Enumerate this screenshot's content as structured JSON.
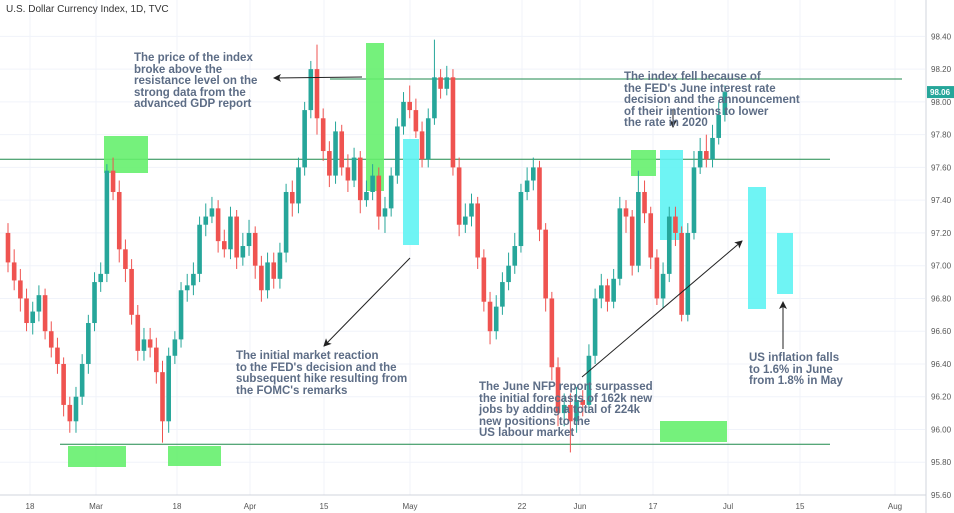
{
  "title": "U.S. Dollar Currency Index, 1D, TVC",
  "chart_data": {
    "type": "candlestick",
    "ylim": [
      95.6,
      98.5
    ],
    "y_ticks": [
      "98.40",
      "98.20",
      "98.00",
      "97.80",
      "97.60",
      "97.40",
      "97.20",
      "97.00",
      "96.80",
      "96.60",
      "96.40",
      "96.20",
      "96.00",
      "95.80",
      "95.60"
    ],
    "x_ticks": [
      "18",
      "Mar",
      "18",
      "Apr",
      "15",
      "May",
      "22",
      "Jun",
      "17",
      "Jul",
      "15",
      "Aug"
    ],
    "last_price": "98.06",
    "horizontal_levels": [
      98.14,
      97.65,
      95.91
    ],
    "candles": [
      [
        97.2,
        97.02,
        97.26,
        96.96
      ],
      [
        97.02,
        96.91,
        97.1,
        96.85
      ],
      [
        96.91,
        96.8,
        96.98,
        96.72
      ],
      [
        96.8,
        96.65,
        96.86,
        96.6
      ],
      [
        96.65,
        96.72,
        96.78,
        96.58
      ],
      [
        96.72,
        96.82,
        96.88,
        96.66
      ],
      [
        96.82,
        96.6,
        96.86,
        96.55
      ],
      [
        96.6,
        96.5,
        96.66,
        96.44
      ],
      [
        96.5,
        96.4,
        96.56,
        96.34
      ],
      [
        96.4,
        96.15,
        96.44,
        96.08
      ],
      [
        96.15,
        96.05,
        96.2,
        95.98
      ],
      [
        96.05,
        96.2,
        96.26,
        95.98
      ],
      [
        96.2,
        96.4,
        96.46,
        96.15
      ],
      [
        96.4,
        96.65,
        96.7,
        96.34
      ],
      [
        96.65,
        96.9,
        96.96,
        96.6
      ],
      [
        96.9,
        96.95,
        97.02,
        96.84
      ],
      [
        96.95,
        97.58,
        97.62,
        96.9
      ],
      [
        97.58,
        97.45,
        97.66,
        97.4
      ],
      [
        97.45,
        97.1,
        97.52,
        97.02
      ],
      [
        97.1,
        96.98,
        97.16,
        96.9
      ],
      [
        96.98,
        96.7,
        97.04,
        96.64
      ],
      [
        96.7,
        96.48,
        96.76,
        96.42
      ],
      [
        96.48,
        96.55,
        96.62,
        96.42
      ],
      [
        96.55,
        96.5,
        96.62,
        96.44
      ],
      [
        96.5,
        96.35,
        96.56,
        96.28
      ],
      [
        96.35,
        96.05,
        96.42,
        95.92
      ],
      [
        96.05,
        96.45,
        96.5,
        95.98
      ],
      [
        96.45,
        96.55,
        96.6,
        96.4
      ],
      [
        96.55,
        96.85,
        96.9,
        96.5
      ],
      [
        96.85,
        96.88,
        96.95,
        96.78
      ],
      [
        96.88,
        96.95,
        97.02,
        96.82
      ],
      [
        96.95,
        97.25,
        97.3,
        96.9
      ],
      [
        97.25,
        97.3,
        97.38,
        97.18
      ],
      [
        97.3,
        97.35,
        97.42,
        97.26
      ],
      [
        97.35,
        97.15,
        97.4,
        97.08
      ],
      [
        97.15,
        97.1,
        97.22,
        97.05
      ],
      [
        97.1,
        97.3,
        97.36,
        97.04
      ],
      [
        97.3,
        97.05,
        97.34,
        96.98
      ],
      [
        97.05,
        97.12,
        97.2,
        97.0
      ],
      [
        97.12,
        97.2,
        97.28,
        97.06
      ],
      [
        97.2,
        97.0,
        97.24,
        96.92
      ],
      [
        97.0,
        96.85,
        97.06,
        96.78
      ],
      [
        96.85,
        97.02,
        97.08,
        96.8
      ],
      [
        97.02,
        96.92,
        97.08,
        96.86
      ],
      [
        96.92,
        97.08,
        97.14,
        96.86
      ],
      [
        97.08,
        97.45,
        97.5,
        97.02
      ],
      [
        97.45,
        97.38,
        97.52,
        97.3
      ],
      [
        97.38,
        97.6,
        97.66,
        97.32
      ],
      [
        97.6,
        97.95,
        98.0,
        97.55
      ],
      [
        97.95,
        98.2,
        98.25,
        97.9
      ],
      [
        98.2,
        97.9,
        98.35,
        97.8
      ],
      [
        97.9,
        97.7,
        97.96,
        97.64
      ],
      [
        97.7,
        97.55,
        97.76,
        97.48
      ],
      [
        97.55,
        97.82,
        97.88,
        97.5
      ],
      [
        97.82,
        97.6,
        97.86,
        97.55
      ],
      [
        97.6,
        97.52,
        97.68,
        97.45
      ],
      [
        97.52,
        97.66,
        97.72,
        97.48
      ],
      [
        97.66,
        97.4,
        97.7,
        97.32
      ],
      [
        97.4,
        97.45,
        97.52,
        97.36
      ],
      [
        97.45,
        97.55,
        97.62,
        97.4
      ],
      [
        97.55,
        97.3,
        97.6,
        97.22
      ],
      [
        97.3,
        97.35,
        97.42,
        97.2
      ],
      [
        97.35,
        97.55,
        97.6,
        97.3
      ],
      [
        97.55,
        97.85,
        97.9,
        97.5
      ],
      [
        97.85,
        98.0,
        98.06,
        97.8
      ],
      [
        98.0,
        97.95,
        98.1,
        97.9
      ],
      [
        97.95,
        97.82,
        98.02,
        97.78
      ],
      [
        97.82,
        97.65,
        97.88,
        97.6
      ],
      [
        97.65,
        97.9,
        97.96,
        97.6
      ],
      [
        97.9,
        98.15,
        98.38,
        97.86
      ],
      [
        98.15,
        98.08,
        98.2,
        98.02
      ],
      [
        98.08,
        98.15,
        98.22,
        98.04
      ],
      [
        98.15,
        97.6,
        98.2,
        97.55
      ],
      [
        97.6,
        97.25,
        97.66,
        97.18
      ],
      [
        97.25,
        97.3,
        97.38,
        97.2
      ],
      [
        97.3,
        97.38,
        97.44,
        97.24
      ],
      [
        97.38,
        97.05,
        97.42,
        96.98
      ],
      [
        97.05,
        96.78,
        97.1,
        96.72
      ],
      [
        96.78,
        96.6,
        96.84,
        96.52
      ],
      [
        96.6,
        96.75,
        96.82,
        96.55
      ],
      [
        96.75,
        96.9,
        96.96,
        96.7
      ],
      [
        96.9,
        97.0,
        97.08,
        96.85
      ],
      [
        97.0,
        97.12,
        97.2,
        96.95
      ],
      [
        97.12,
        97.45,
        97.5,
        97.08
      ],
      [
        97.45,
        97.52,
        97.6,
        97.4
      ],
      [
        97.52,
        97.6,
        97.66,
        97.46
      ],
      [
        97.6,
        97.22,
        97.64,
        97.15
      ],
      [
        97.22,
        96.8,
        97.26,
        96.72
      ],
      [
        96.8,
        96.38,
        96.84,
        96.3
      ],
      [
        96.38,
        96.1,
        96.44,
        96.02
      ],
      [
        96.1,
        96.15,
        96.22,
        96.02
      ],
      [
        96.15,
        96.05,
        96.22,
        95.86
      ],
      [
        96.05,
        96.18,
        96.26,
        95.98
      ],
      [
        96.18,
        96.15,
        96.24,
        96.08
      ],
      [
        96.15,
        96.45,
        96.52,
        96.1
      ],
      [
        96.45,
        96.8,
        96.86,
        96.4
      ],
      [
        96.8,
        96.88,
        96.95,
        96.74
      ],
      [
        96.88,
        96.78,
        96.92,
        96.72
      ],
      [
        96.78,
        96.92,
        96.98,
        96.74
      ],
      [
        96.92,
        97.35,
        97.42,
        96.88
      ],
      [
        97.35,
        97.3,
        97.4,
        97.2
      ],
      [
        97.3,
        97.0,
        97.34,
        96.94
      ],
      [
        97.0,
        97.45,
        97.58,
        96.96
      ],
      [
        97.45,
        97.32,
        97.52,
        97.26
      ],
      [
        97.32,
        97.05,
        97.36,
        96.98
      ],
      [
        97.05,
        96.8,
        97.1,
        96.76
      ],
      [
        96.8,
        96.95,
        97.02,
        96.74
      ],
      [
        96.95,
        97.3,
        97.36,
        96.9
      ],
      [
        97.3,
        97.2,
        97.36,
        97.12
      ],
      [
        97.2,
        96.7,
        97.24,
        96.66
      ],
      [
        96.7,
        97.2,
        97.26,
        96.66
      ],
      [
        97.2,
        97.6,
        97.7,
        97.16
      ],
      [
        97.6,
        97.7,
        97.78,
        97.56
      ],
      [
        97.7,
        97.65,
        97.8,
        97.6
      ],
      [
        97.65,
        97.78,
        97.86,
        97.6
      ],
      [
        97.78,
        97.92,
        98.0,
        97.74
      ],
      [
        97.92,
        98.06,
        98.1,
        97.88
      ]
    ]
  },
  "annotations": {
    "a1": [
      "The price of the index",
      "broke above the",
      "resistance level on the",
      "strong data from the",
      "advanced GDP report"
    ],
    "a2": [
      "The index fell because of",
      "the FED's June interest rate",
      "decision and the announcement",
      "of their intentions to lower",
      "the rate in 2020"
    ],
    "a3": [
      "The initial market reaction",
      "to the FED's decision and the",
      "subsequent hike resulting from",
      "the FOMC's remarks"
    ],
    "a4": [
      "The June NFP report surpassed",
      "the initial forecasts of 162k new",
      "jobs by adding a total of 224k",
      "new positions to the",
      "US labour market"
    ],
    "a5": [
      "US inflation falls",
      "to 1.6% in June",
      "from 1.8% in May"
    ]
  },
  "colors": {
    "up": "#26a69a",
    "down": "#ef5350",
    "level": "#1f8a4c",
    "highlight_green": "#66ef6e",
    "highlight_cyan": "#5ff3f3",
    "annotation": "#5d6d86",
    "price_tag": "#26a69a"
  }
}
